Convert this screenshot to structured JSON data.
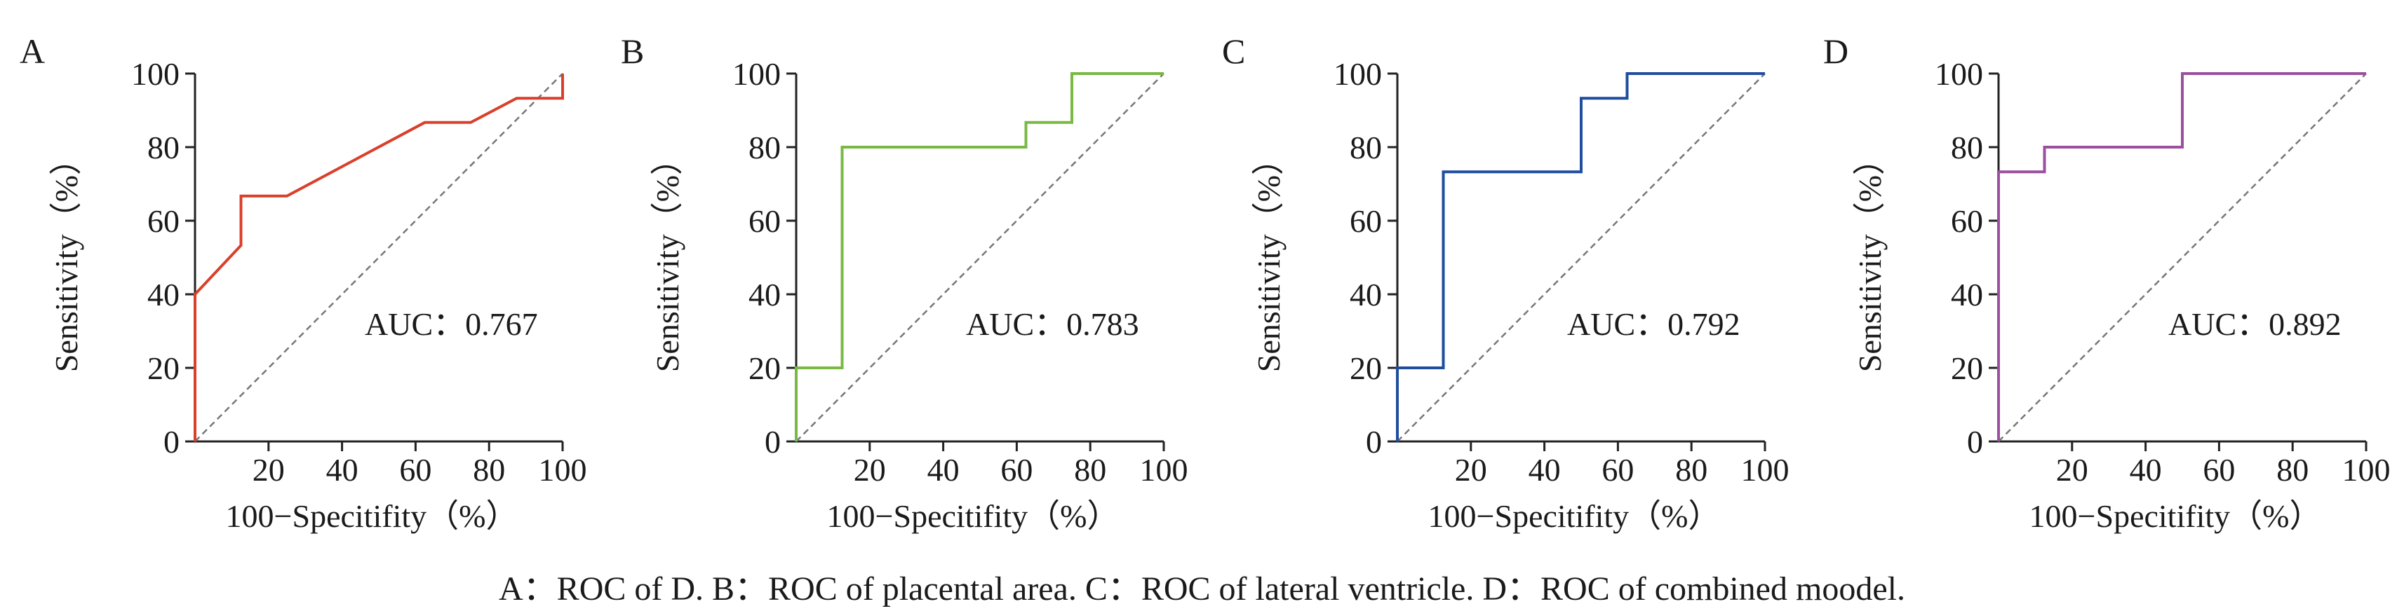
{
  "caption": "A：ROC of D. B：ROC of placental area. C：ROC of lateral ventricle. D：ROC of combined moodel.",
  "chart_data": [
    {
      "type": "line",
      "panel": "A",
      "xlabel": "100−Specitifity（%）",
      "ylabel": "Sensitivity（%）",
      "xlim": [
        0,
        100
      ],
      "ylim": [
        0,
        100
      ],
      "x_ticks": [
        "20",
        "40",
        "60",
        "80",
        "100"
      ],
      "y_ticks": [
        "0",
        "20",
        "40",
        "60",
        "80",
        "100"
      ],
      "annotation": "AUC：0.767",
      "color": "#d9402b",
      "x": [
        0,
        0,
        12.5,
        12.5,
        25,
        62.5,
        75,
        87.5,
        100,
        100
      ],
      "y": [
        0,
        40,
        53.3,
        66.7,
        66.7,
        86.7,
        86.7,
        93.3,
        93.3,
        100
      ],
      "reference_line": true,
      "grid": false
    },
    {
      "type": "line",
      "panel": "B",
      "xlabel": "100−Specitifity（%）",
      "ylabel": "Sensitivity（%）",
      "xlim": [
        0,
        100
      ],
      "ylim": [
        0,
        100
      ],
      "x_ticks": [
        "20",
        "40",
        "60",
        "80",
        "100"
      ],
      "y_ticks": [
        "0",
        "20",
        "40",
        "60",
        "80",
        "100"
      ],
      "annotation": "AUC：0.783",
      "color": "#78b944",
      "x": [
        0,
        0,
        12.5,
        12.5,
        62.5,
        62.5,
        75,
        75,
        100
      ],
      "y": [
        0,
        20,
        20,
        80,
        80,
        86.7,
        86.7,
        100,
        100
      ],
      "reference_line": true,
      "grid": false
    },
    {
      "type": "line",
      "panel": "C",
      "xlabel": "100−Specitifity（%）",
      "ylabel": "Sensitivity（%）",
      "xlim": [
        0,
        100
      ],
      "ylim": [
        0,
        100
      ],
      "x_ticks": [
        "20",
        "40",
        "60",
        "80",
        "100"
      ],
      "y_ticks": [
        "0",
        "20",
        "40",
        "60",
        "80",
        "100"
      ],
      "annotation": "AUC：0.792",
      "color": "#1f4e9e",
      "x": [
        0,
        0,
        12.5,
        12.5,
        50,
        50,
        62.5,
        62.5,
        100
      ],
      "y": [
        0,
        20,
        20,
        73.3,
        73.3,
        93.3,
        93.3,
        100,
        100
      ],
      "reference_line": true,
      "grid": false
    },
    {
      "type": "line",
      "panel": "D",
      "xlabel": "100−Specitifity（%）",
      "ylabel": "Sensitivity（%）",
      "xlim": [
        0,
        100
      ],
      "ylim": [
        0,
        100
      ],
      "x_ticks": [
        "20",
        "40",
        "60",
        "80",
        "100"
      ],
      "y_ticks": [
        "0",
        "20",
        "40",
        "60",
        "80",
        "100"
      ],
      "annotation": "AUC：0.892",
      "color": "#9b4f9f",
      "x": [
        0,
        0,
        12.5,
        12.5,
        50,
        50,
        100
      ],
      "y": [
        0,
        73.3,
        73.3,
        80,
        80,
        100,
        100
      ],
      "reference_line": true,
      "grid": false
    }
  ]
}
